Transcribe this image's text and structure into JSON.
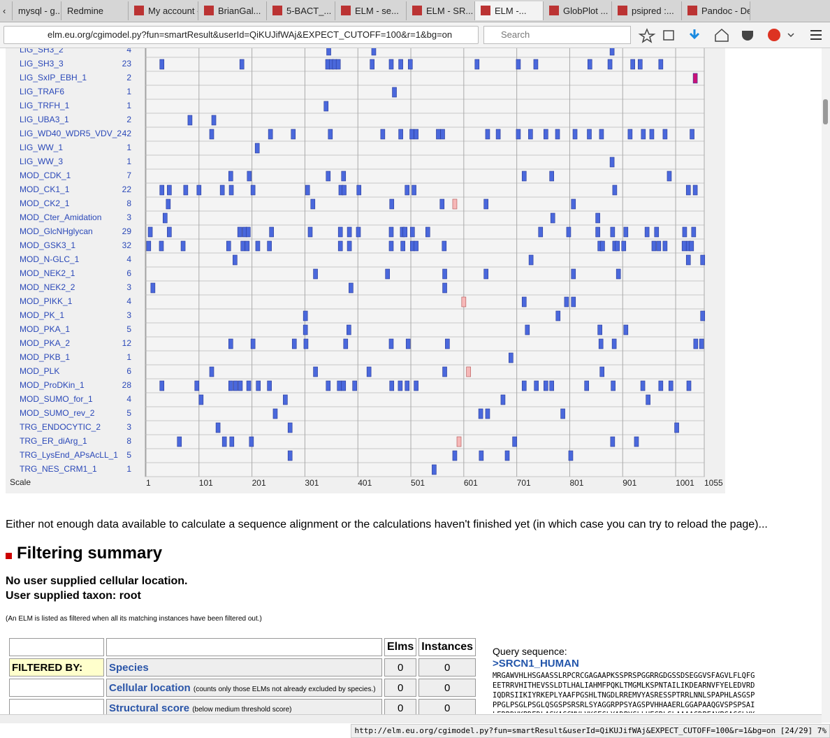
{
  "browser": {
    "tabs": [
      "mysql - g...",
      "Redmine",
      "My account -...",
      "BrianGal...",
      "5-BACT_...",
      "ELM - se...",
      "ELM - SR...",
      "ELM -...",
      "GlobPlot ...",
      "psipred :...",
      "Pandoc - De..."
    ],
    "url": "elm.eu.org/cgimodel.py?fun=smartResult&userId=QiKUJifWAj&EXPECT_CUTOFF=100&r=1&bg=on",
    "search": "Search",
    "status_url": "http://elm.eu.org/cgimodel.py?fun=smartResult&userId=QiKUJifWAj&EXPECT_CUTOFF=100&r=1&bg=on [24/29]",
    "status_zoom": "7%"
  },
  "chart_data": {
    "type": "motif-map",
    "range": [
      1,
      1055
    ],
    "scale_label": "Scale",
    "ticks": [
      1,
      101,
      201,
      301,
      401,
      501,
      601,
      701,
      801,
      901,
      1001,
      1055
    ],
    "rows": [
      {
        "name": "LIG_SH3_2",
        "count": "4",
        "positions": [
          346,
          431,
          881
        ]
      },
      {
        "name": "LIG_SH3_3",
        "count": "23",
        "positions": [
          31,
          182,
          344,
          351,
          357,
          364,
          428,
          464,
          482,
          500,
          626,
          704,
          737,
          839,
          877,
          920,
          934,
          973
        ]
      },
      {
        "name": "LIG_SxIP_EBH_1",
        "count": "2",
        "positions": [
          1038
        ],
        "color": "#cc1177"
      },
      {
        "name": "LIG_TRAF6",
        "count": "1",
        "positions": [
          470
        ]
      },
      {
        "name": "LIG_TRFH_1",
        "count": "1",
        "positions": [
          341
        ]
      },
      {
        "name": "LIG_UBA3_1",
        "count": "2",
        "positions": [
          84,
          129
        ]
      },
      {
        "name": "LIG_WD40_WDR5_VDV_2",
        "count": "42",
        "positions": [
          125,
          236,
          279,
          349,
          448,
          482,
          503,
          511,
          553,
          561,
          646,
          666,
          704,
          727,
          756,
          778,
          811,
          838,
          861,
          915,
          940,
          956,
          981,
          1032
        ]
      },
      {
        "name": "LIG_WW_1",
        "count": "1",
        "positions": [
          211
        ]
      },
      {
        "name": "LIG_WW_3",
        "count": "1",
        "positions": [
          881
        ]
      },
      {
        "name": "MOD_CDK_1",
        "count": "7",
        "positions": [
          161,
          196,
          345,
          374,
          715,
          767,
          989
        ]
      },
      {
        "name": "MOD_CK1_1",
        "count": "22",
        "positions": [
          31,
          45,
          76,
          101,
          145,
          162,
          203,
          306,
          369,
          375,
          403,
          494,
          507,
          886,
          1025,
          1038
        ]
      },
      {
        "name": "MOD_CK2_1",
        "count": "8",
        "positions": [
          43,
          316,
          465,
          560,
          643,
          808
        ],
        "filtered": [
          584
        ]
      },
      {
        "name": "MOD_Cter_Amidation",
        "count": "3",
        "positions": [
          37,
          769,
          854
        ]
      },
      {
        "name": "MOD_GlcNHglycan",
        "count": "29",
        "positions": [
          9,
          45,
          178,
          187,
          194,
          238,
          311,
          368,
          385,
          402,
          464,
          485,
          490,
          504,
          533,
          746,
          799,
          854,
          882,
          907,
          947,
          965,
          1018,
          1035
        ]
      },
      {
        "name": "MOD_GSK3_1",
        "count": "32",
        "positions": [
          6,
          30,
          71,
          157,
          184,
          192,
          212,
          234,
          368,
          385,
          464,
          486,
          504,
          511,
          564,
          858,
          863,
          886,
          891,
          903,
          960,
          969,
          981,
          1017,
          1025,
          1031
        ]
      },
      {
        "name": "MOD_N-GLC_1",
        "count": "4",
        "positions": [
          169,
          728,
          1025,
          1052
        ]
      },
      {
        "name": "MOD_NEK2_1",
        "count": "6",
        "positions": [
          321,
          457,
          565,
          643,
          808,
          893
        ]
      },
      {
        "name": "MOD_NEK2_2",
        "count": "3",
        "positions": [
          14,
          388,
          565
        ]
      },
      {
        "name": "MOD_PIKK_1",
        "count": "4",
        "positions": [
          715,
          795,
          808
        ],
        "filtered": [
          601
        ]
      },
      {
        "name": "MOD_PK_1",
        "count": "3",
        "positions": [
          302,
          779,
          1052
        ]
      },
      {
        "name": "MOD_PKA_1",
        "count": "5",
        "positions": [
          302,
          384,
          721,
          858,
          907
        ]
      },
      {
        "name": "MOD_PKA_2",
        "count": "12",
        "positions": [
          161,
          203,
          281,
          303,
          378,
          464,
          496,
          570,
          860,
          885,
          1039,
          1050
        ]
      },
      {
        "name": "MOD_PKB_1",
        "count": "1",
        "positions": [
          690
        ]
      },
      {
        "name": "MOD_PLK",
        "count": "6",
        "positions": [
          125,
          321,
          422,
          565,
          862
        ],
        "filtered": [
          610
        ]
      },
      {
        "name": "MOD_ProDKin_1",
        "count": "28",
        "positions": [
          31,
          97,
          161,
          170,
          179,
          195,
          213,
          234,
          345,
          366,
          374,
          395,
          465,
          481,
          494,
          511,
          715,
          738,
          756,
          767,
          833,
          883,
          939,
          973,
          992,
          1026
        ]
      },
      {
        "name": "MOD_SUMO_for_1",
        "count": "4",
        "positions": [
          105,
          264,
          675,
          949
        ]
      },
      {
        "name": "MOD_SUMO_rev_2",
        "count": "5",
        "positions": [
          245,
          633,
          646,
          788
        ]
      },
      {
        "name": "TRG_ENDOCYTIC_2",
        "count": "3",
        "positions": [
          137,
          273,
          1003
        ]
      },
      {
        "name": "TRG_ER_diArg_1",
        "count": "8",
        "positions": [
          64,
          149,
          163,
          200,
          697,
          882,
          927
        ],
        "filtered": [
          592
        ]
      },
      {
        "name": "TRG_LysEnd_APsAcLL_1",
        "count": "5",
        "positions": [
          273,
          584,
          634,
          683,
          803
        ]
      },
      {
        "name": "TRG_NES_CRM1_1",
        "count": "1",
        "positions": [
          545
        ]
      }
    ]
  },
  "notice": "Either not enough data available to calculate a sequence alignment or the calculations haven't finished yet (in which case you can try to reload the page)...",
  "filtering": {
    "title": "Filtering summary",
    "lines": [
      "No user supplied cellular location.",
      "User supplied taxon: root"
    ],
    "note": "(An ELM is listed as filtered when all its matching instances have been filtered out.)",
    "table": {
      "header": [
        "Elms",
        "Instances"
      ],
      "rows": [
        {
          "label": "FILTERED BY:",
          "name": "Species",
          "desc": "",
          "elms": "0",
          "instances": "0"
        },
        {
          "label": "",
          "name": "Cellular location",
          "desc": "(counts only those ELMs not already excluded by species.)",
          "elms": "0",
          "instances": "0"
        },
        {
          "label": "",
          "name": "Structural score",
          "desc": "(below medium threshold score)",
          "elms": "0",
          "instances": "0"
        }
      ]
    }
  },
  "query": {
    "label": "Query sequence:",
    "name": ">SRCN1_HUMAN",
    "lines": [
      "MRGAWVHLHSGAASSLRPCRCGAGAAPKSSPRSPGGRRGDGSSDSEGGVSFAGVLFLQFG",
      "EETRRVHITHEVSSLDTLHALIAHMFPQKLTMGMLKSPNTAILIKDEARNVFYELEDVRD",
      "IQDRSIIKIYRKEPLYAAFPGSHLTNGDLRREMVYASRESSPTRRLNNLSPAPHLASGSP",
      "PPGLPSGLPSGLQSGSPSRSRLSYAGGRPPSYAGSPVHHAAERLGGAPAAQGVSPSPSAI",
      "LERRDVKPDEDLASKAGGMVLVKGEGLYADPYGLLHEGRLSLAAAAGDPFAYPGAGGLYK"
    ]
  }
}
